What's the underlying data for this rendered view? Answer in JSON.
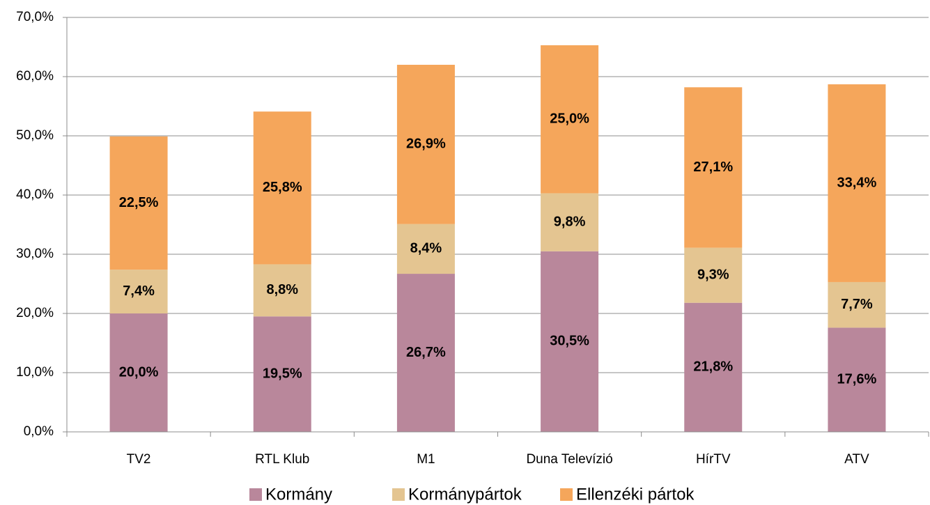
{
  "chart_data": {
    "type": "stacked_bar",
    "categories": [
      "TV2",
      "RTL Klub",
      "M1",
      "Duna Televízió",
      "HírTV",
      "ATV"
    ],
    "series": [
      {
        "name": "Kormány",
        "color": "#b9879b",
        "values": [
          20.0,
          19.5,
          26.7,
          30.5,
          21.8,
          17.6
        ],
        "value_labels": [
          "20,0%",
          "19,5%",
          "26,7%",
          "30,5%",
          "21,8%",
          "17,6%"
        ]
      },
      {
        "name": "Kormánypártok",
        "color": "#e4c591",
        "values": [
          7.4,
          8.8,
          8.4,
          9.8,
          9.3,
          7.7
        ],
        "value_labels": [
          "7,4%",
          "8,8%",
          "8,4%",
          "9,8%",
          "9,3%",
          "7,7%"
        ]
      },
      {
        "name": "Ellenzéki pártok",
        "color": "#f5a65b",
        "values": [
          22.5,
          25.8,
          26.9,
          25.0,
          27.1,
          33.4
        ],
        "value_labels": [
          "22,5%",
          "25,8%",
          "26,9%",
          "25,0%",
          "27,1%",
          "33,4%"
        ]
      }
    ],
    "ylim": [
      0,
      70
    ],
    "yticks": [
      {
        "value": 0,
        "label": "0,0%"
      },
      {
        "value": 10,
        "label": "10,0%"
      },
      {
        "value": 20,
        "label": "20,0%"
      },
      {
        "value": 30,
        "label": "30,0%"
      },
      {
        "value": 40,
        "label": "40,0%"
      },
      {
        "value": 50,
        "label": "50,0%"
      },
      {
        "value": 60,
        "label": "60,0%"
      },
      {
        "value": 70,
        "label": "70,0%"
      }
    ],
    "grid": true,
    "legend": "bottom"
  }
}
